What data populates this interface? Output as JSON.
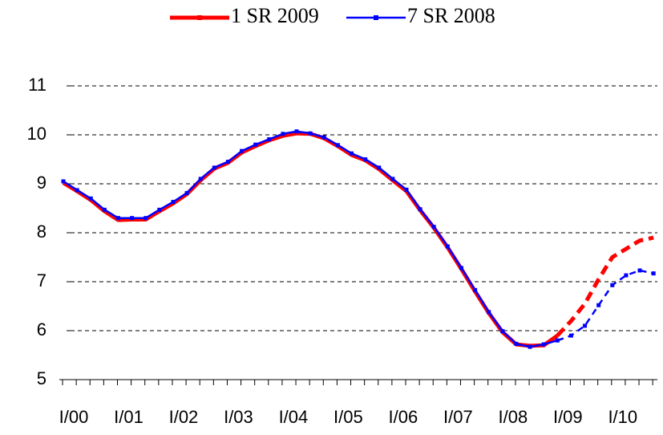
{
  "chart_data": {
    "type": "line",
    "categories": [
      "I/00",
      null,
      null,
      null,
      "I/01",
      null,
      null,
      null,
      "I/02",
      null,
      null,
      null,
      "I/03",
      null,
      null,
      null,
      "I/04",
      null,
      null,
      null,
      "I/05",
      null,
      null,
      null,
      "I/06",
      null,
      null,
      null,
      "I/07",
      null,
      null,
      null,
      "I/08",
      null,
      null,
      null,
      "I/09",
      null,
      null,
      null,
      "I/10",
      null,
      null,
      null
    ],
    "series": [
      {
        "name": "1 SR 2009",
        "color": "#ff0000",
        "dash_from_index": 36,
        "values": [
          9.02,
          8.85,
          8.67,
          8.44,
          8.26,
          8.27,
          8.27,
          8.44,
          8.6,
          8.79,
          9.07,
          9.31,
          9.43,
          9.64,
          9.77,
          9.89,
          9.98,
          10.03,
          10.02,
          9.93,
          9.77,
          9.59,
          9.48,
          9.3,
          9.07,
          8.85,
          8.46,
          8.1,
          7.7,
          7.26,
          6.8,
          6.36,
          5.97,
          5.72,
          5.69,
          5.7,
          5.9,
          6.2,
          6.55,
          7.05,
          7.5,
          7.67,
          7.84,
          7.9
        ]
      },
      {
        "name": "7 SR 2008",
        "color": "#0000ff",
        "dash_from_index": 36,
        "values": [
          9.05,
          8.87,
          8.7,
          8.47,
          8.3,
          8.3,
          8.3,
          8.47,
          8.63,
          8.81,
          9.1,
          9.33,
          9.45,
          9.67,
          9.8,
          9.91,
          10.02,
          10.07,
          10.03,
          9.95,
          9.79,
          9.62,
          9.5,
          9.33,
          9.1,
          8.88,
          8.48,
          8.12,
          7.72,
          7.28,
          6.83,
          6.38,
          5.99,
          5.73,
          5.67,
          5.72,
          5.8,
          5.9,
          6.1,
          6.52,
          6.93,
          7.13,
          7.23,
          7.17
        ]
      }
    ],
    "ylim": [
      5,
      11
    ],
    "yticks": [
      5,
      6,
      7,
      8,
      9,
      10,
      11
    ],
    "grid": true,
    "legend": "top"
  }
}
